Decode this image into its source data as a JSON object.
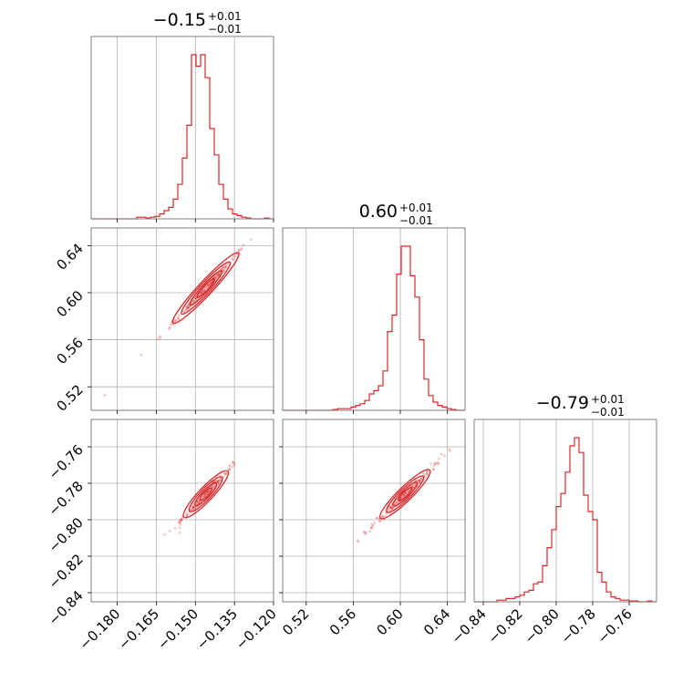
{
  "chart_data": {
    "type": "corner",
    "color": "#d62728",
    "grid": true,
    "parameters": [
      {
        "title_value": "−0.15",
        "title_plus": "+0.01",
        "title_minus": "−0.01",
        "range": [
          -0.19,
          -0.12
        ],
        "ticks": [
          -0.18,
          -0.165,
          -0.15,
          -0.135,
          -0.12
        ],
        "tick_labels": [
          "−0.180",
          "−0.165",
          "−0.150",
          "−0.135",
          "−0.120"
        ],
        "hist": [
          0,
          0,
          0,
          0,
          0,
          0,
          0,
          0,
          0,
          0,
          0.01,
          0.01,
          0.005,
          0.01,
          0.015,
          0.03,
          0.05,
          0.07,
          0.12,
          0.21,
          0.37,
          0.57,
          1.0,
          0.93,
          1.0,
          0.86,
          0.55,
          0.39,
          0.21,
          0.12,
          0.06,
          0.03,
          0.02,
          0.01,
          0.005,
          0,
          0,
          0,
          0.005,
          0
        ]
      },
      {
        "title_value": "0.60",
        "title_plus": "+0.01",
        "title_minus": "−0.01",
        "range": [
          0.5,
          0.655
        ],
        "ticks": [
          0.52,
          0.56,
          0.6,
          0.64
        ],
        "tick_labels": [
          "0.52",
          "0.56",
          "0.60",
          "0.64"
        ],
        "hist": [
          0,
          0,
          0,
          0,
          0,
          0,
          0,
          0,
          0,
          0,
          0,
          0.005,
          0.01,
          0.01,
          0.01,
          0.02,
          0.03,
          0.04,
          0.06,
          0.1,
          0.12,
          0.15,
          0.24,
          0.48,
          0.58,
          0.83,
          1.0,
          1.0,
          0.82,
          0.69,
          0.43,
          0.19,
          0.09,
          0.05,
          0.03,
          0.02,
          0.01,
          0.005,
          0,
          0
        ]
      },
      {
        "title_value": "−0.79",
        "title_plus": "+0.01",
        "title_minus": "−0.01",
        "range": [
          -0.845,
          -0.745
        ],
        "ticks": [
          -0.84,
          -0.82,
          -0.8,
          -0.78,
          -0.76
        ],
        "tick_labels": [
          "−0.84",
          "−0.82",
          "−0.80",
          "−0.78",
          "−0.76"
        ],
        "hist": [
          0,
          0,
          0,
          0,
          0,
          0.01,
          0.01,
          0.02,
          0.02,
          0.03,
          0.04,
          0.06,
          0.07,
          0.11,
          0.12,
          0.22,
          0.33,
          0.44,
          0.58,
          0.66,
          0.79,
          0.95,
          1.0,
          0.91,
          0.65,
          0.55,
          0.5,
          0.18,
          0.12,
          0.06,
          0.03,
          0.02,
          0.01,
          0.01,
          0.005,
          0.005,
          0,
          0,
          0.005,
          0
        ]
      }
    ],
    "pairs": [
      {
        "x_param": 0,
        "y_param": 1,
        "slope": 2.37,
        "width": 0.006,
        "spread": 0.006
      },
      {
        "x_param": 0,
        "y_param": 2,
        "slope": 1.5,
        "width": 0.006,
        "spread": 0.004
      },
      {
        "x_param": 1,
        "y_param": 2,
        "slope": 0.63,
        "width": 0.005,
        "spread": 0.01
      }
    ]
  }
}
